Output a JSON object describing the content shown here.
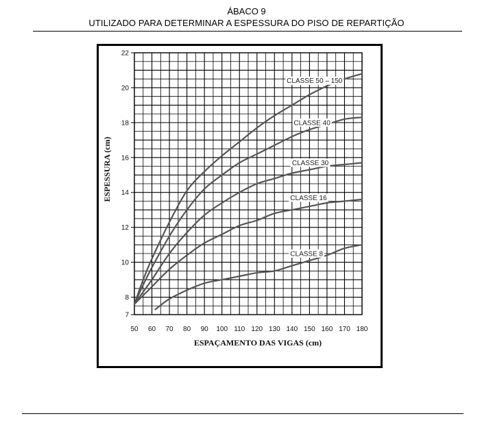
{
  "header": {
    "title": "ÁBACO 9",
    "subtitle": "UTILIZADO PARA DETERMINAR A ESPESSURA DO PISO DE REPARTIÇÃO"
  },
  "chart_data": {
    "type": "line",
    "xlabel": "ESPAÇAMENTO DAS VIGAS (cm)",
    "ylabel": "ESPESSURA (cm)",
    "xlim": [
      50,
      180
    ],
    "ylim": [
      7,
      22
    ],
    "x_ticks": [
      50,
      60,
      70,
      80,
      90,
      100,
      110,
      120,
      130,
      140,
      150,
      160,
      170,
      180
    ],
    "y_ticks": [
      7,
      8,
      10,
      12,
      14,
      16,
      18,
      20,
      22
    ],
    "grid": true,
    "x_minor_step": 5,
    "y_minor_step": 0.5,
    "line_color": "#555555",
    "series": [
      {
        "name": "CLASSE 50 – 150",
        "x": [
          50,
          55,
          60,
          70,
          80,
          90,
          100,
          110,
          120,
          130,
          140,
          150,
          160,
          170,
          180
        ],
        "y": [
          7.6,
          9.0,
          10.2,
          12.3,
          14.1,
          15.2,
          16.1,
          16.9,
          17.7,
          18.4,
          19.0,
          19.6,
          20.1,
          20.5,
          20.8
        ]
      },
      {
        "name": "CLASSE 40",
        "x": [
          50,
          55,
          60,
          70,
          80,
          90,
          100,
          110,
          120,
          130,
          140,
          150,
          160,
          170,
          180
        ],
        "y": [
          7.6,
          8.7,
          9.7,
          11.5,
          13.0,
          14.2,
          15.0,
          15.7,
          16.2,
          16.7,
          17.2,
          17.6,
          17.9,
          18.2,
          18.3
        ]
      },
      {
        "name": "CLASSE 30",
        "x": [
          50,
          55,
          60,
          70,
          80,
          90,
          100,
          110,
          120,
          130,
          140,
          150,
          160,
          170,
          180
        ],
        "y": [
          7.6,
          8.3,
          9.0,
          10.5,
          11.7,
          12.7,
          13.4,
          14.0,
          14.5,
          14.8,
          15.1,
          15.3,
          15.5,
          15.6,
          15.7
        ]
      },
      {
        "name": "CLASSE 16",
        "x": [
          50,
          55,
          60,
          70,
          80,
          90,
          100,
          110,
          120,
          130,
          140,
          150,
          160,
          170,
          180
        ],
        "y": [
          7.6,
          8.1,
          8.6,
          9.6,
          10.4,
          11.1,
          11.6,
          12.1,
          12.4,
          12.8,
          13.0,
          13.2,
          13.4,
          13.5,
          13.6
        ]
      },
      {
        "name": "CLASSE 8",
        "x": [
          62,
          70,
          80,
          90,
          100,
          110,
          120,
          130,
          140,
          150,
          160,
          170,
          180
        ],
        "y": [
          7.3,
          7.9,
          8.4,
          8.8,
          9.0,
          9.2,
          9.4,
          9.5,
          9.8,
          10.1,
          10.4,
          10.8,
          11.0
        ]
      }
    ],
    "series_labels": [
      {
        "text": "CLASSE 50 – 150",
        "x": 137,
        "y": 20.4
      },
      {
        "text": "CLASSE 40",
        "x": 141,
        "y": 18.0
      },
      {
        "text": "CLASSE 30",
        "x": 140,
        "y": 15.7
      },
      {
        "text": "CLASSE 16",
        "x": 139,
        "y": 13.7
      },
      {
        "text": "CLASSE 8",
        "x": 139,
        "y": 10.5
      }
    ]
  }
}
